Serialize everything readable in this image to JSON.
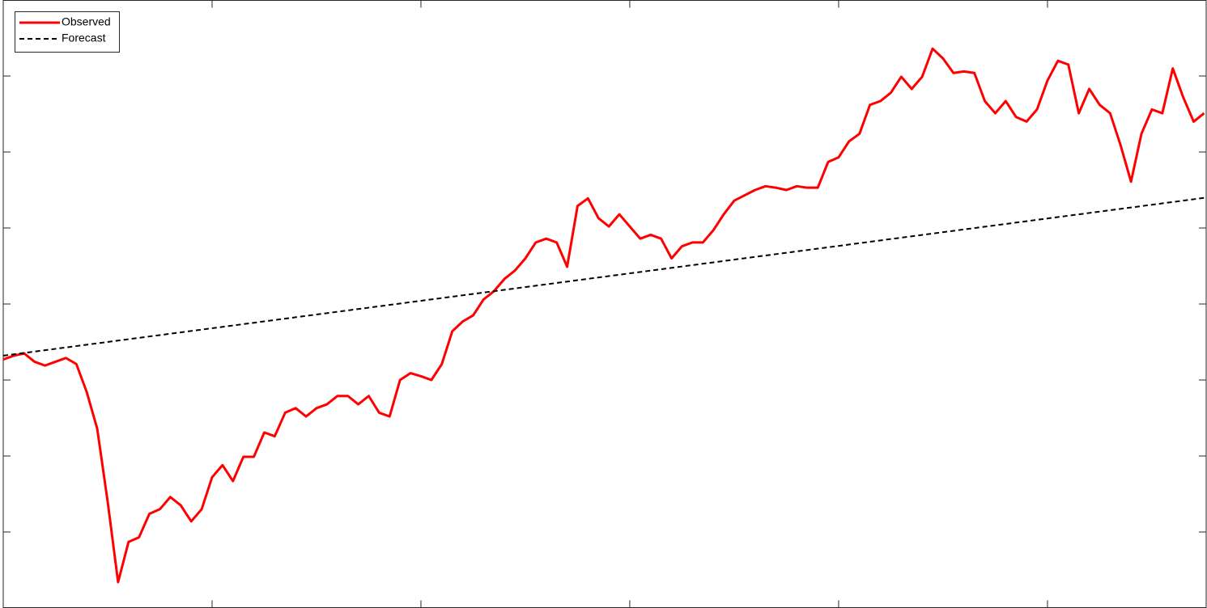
{
  "chart_data": {
    "type": "line",
    "xlim": [
      0,
      5.76
    ],
    "ylim": [
      0,
      8
    ],
    "xticks": [
      1,
      2,
      3,
      4,
      5
    ],
    "yticks": [
      1,
      2,
      3,
      4,
      5,
      6,
      7
    ],
    "grid": false,
    "legend": "upper left",
    "series": [
      {
        "name": "Observed",
        "color": "#ff0000",
        "style": "solid",
        "x": [
          0,
          0.05,
          0.1,
          0.15,
          0.2,
          0.25,
          0.3,
          0.35,
          0.4,
          0.45,
          0.5,
          0.55,
          0.6,
          0.65,
          0.7,
          0.75,
          0.8,
          0.85,
          0.9,
          0.95,
          1,
          1.05,
          1.1,
          1.15,
          1.2,
          1.25,
          1.3,
          1.35,
          1.4,
          1.45,
          1.5,
          1.55,
          1.6,
          1.65,
          1.7,
          1.75,
          1.8,
          1.85,
          1.9,
          1.95,
          2,
          2.05,
          2.1,
          2.15,
          2.2,
          2.25,
          2.3,
          2.35,
          2.4,
          2.45,
          2.5,
          2.55,
          2.6,
          2.65,
          2.7,
          2.75,
          2.8,
          2.85,
          2.9,
          2.95,
          3,
          3.05,
          3.1,
          3.15,
          3.2,
          3.25,
          3.3,
          3.35,
          3.4,
          3.45,
          3.5,
          3.55,
          3.6,
          3.65,
          3.7,
          3.75,
          3.8,
          3.85,
          3.9,
          3.95,
          4,
          4.05,
          4.1,
          4.15,
          4.2,
          4.25,
          4.3,
          4.35,
          4.4,
          4.45,
          4.5,
          4.55,
          4.6,
          4.65,
          4.7,
          4.75,
          4.8,
          4.85,
          4.9,
          4.95,
          5,
          5.05,
          5.1,
          5.15,
          5.2,
          5.25,
          5.3,
          5.35,
          5.4,
          5.45,
          5.5,
          5.55,
          5.6,
          5.65,
          5.7,
          5.75
        ],
        "values": [
          3.27,
          3.32,
          3.35,
          3.24,
          3.19,
          3.24,
          3.29,
          3.21,
          2.84,
          2.36,
          1.4,
          0.34,
          0.87,
          0.93,
          1.24,
          1.3,
          1.46,
          1.35,
          1.14,
          1.3,
          1.72,
          1.88,
          1.67,
          1.99,
          1.99,
          2.31,
          2.26,
          2.57,
          2.63,
          2.52,
          2.63,
          2.68,
          2.79,
          2.79,
          2.68,
          2.79,
          2.57,
          2.52,
          3.0,
          3.09,
          3.05,
          3.0,
          3.21,
          3.64,
          3.77,
          3.85,
          4.06,
          4.17,
          4.33,
          4.44,
          4.6,
          4.81,
          4.86,
          4.81,
          4.49,
          5.29,
          5.39,
          5.13,
          5.02,
          5.18,
          5.02,
          4.86,
          4.91,
          4.86,
          4.6,
          4.76,
          4.81,
          4.81,
          4.97,
          5.18,
          5.36,
          5.43,
          5.5,
          5.55,
          5.53,
          5.5,
          5.55,
          5.53,
          5.53,
          5.87,
          5.93,
          6.14,
          6.24,
          6.62,
          6.67,
          6.78,
          6.99,
          6.83,
          6.99,
          7.36,
          7.23,
          7.04,
          7.06,
          7.04,
          6.67,
          6.51,
          6.67,
          6.46,
          6.4,
          6.56,
          6.94,
          7.2,
          7.15,
          6.51,
          6.83,
          6.62,
          6.51,
          6.09,
          5.61,
          6.24,
          6.56,
          6.51,
          7.1,
          6.72,
          6.4,
          6.51
        ]
      },
      {
        "name": "Forecast",
        "color": "#000000",
        "style": "dashed",
        "x": [
          0,
          5.76
        ],
        "values": [
          3.32,
          5.4
        ]
      }
    ]
  }
}
